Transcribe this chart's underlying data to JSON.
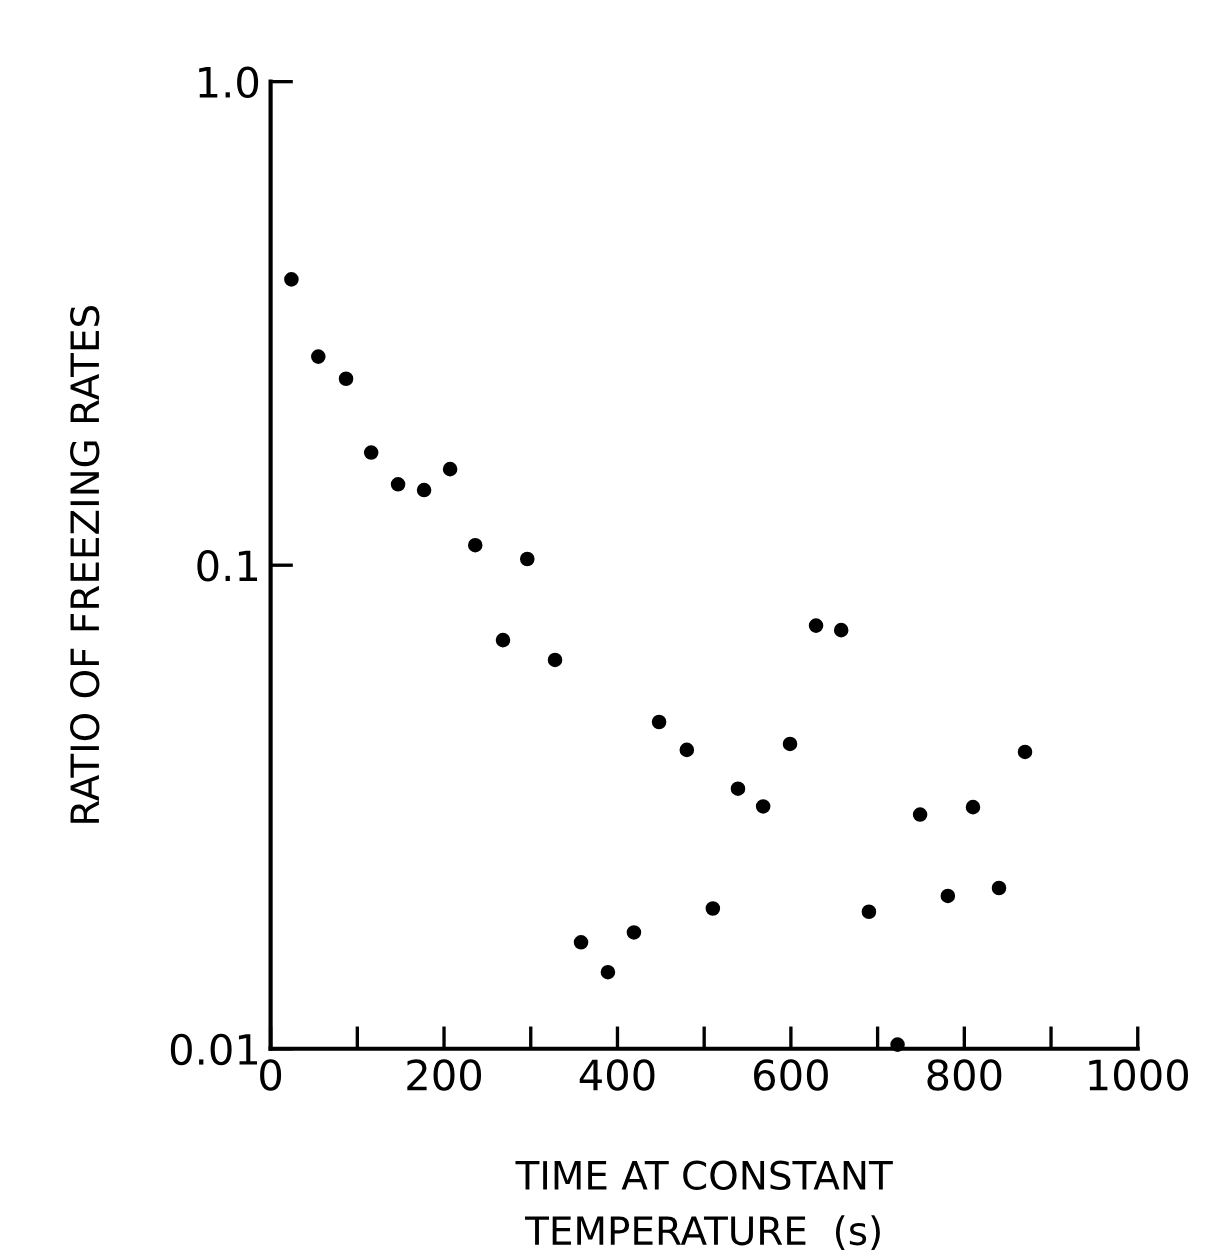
{
  "chart_data": {
    "type": "scatter",
    "xlabel": "TIME AT CONSTANT\nTEMPERATURE  (s)",
    "ylabel": "RATIO OF FREEZING RATES",
    "log": "y",
    "marker": "circle",
    "grid": false,
    "xlim": [
      0,
      1000
    ],
    "ylim": [
      0.01,
      1.0
    ],
    "xticks": [
      0,
      {
        "value": 100,
        "label": null
      },
      200,
      {
        "value": 300,
        "label": null
      },
      400,
      {
        "value": 500,
        "label": null
      },
      600,
      {
        "value": 700,
        "label": null
      },
      800,
      {
        "value": 900,
        "label": null
      },
      1000
    ],
    "yticks": [
      0.01,
      0.1,
      {
        "value": 1.0,
        "label": "1.0"
      }
    ],
    "series": [
      {
        "color": "#000000",
        "x": [
          24,
          55,
          87,
          116,
          147,
          177,
          207,
          236,
          296,
          268,
          328,
          358,
          389,
          419,
          448,
          480,
          510,
          539,
          568,
          599,
          629,
          658,
          690,
          723,
          749,
          781,
          810,
          840,
          870
        ],
        "values": [
          0.39,
          0.27,
          0.243,
          0.171,
          0.147,
          0.143,
          0.158,
          0.11,
          0.103,
          0.07,
          0.0637,
          0.0166,
          0.0144,
          0.0174,
          0.0474,
          0.0415,
          0.0195,
          0.0345,
          0.0317,
          0.0427,
          0.075,
          0.0734,
          0.0192,
          0.0102,
          0.0305,
          0.0207,
          0.0316,
          0.0215,
          0.0411
        ]
      }
    ]
  }
}
